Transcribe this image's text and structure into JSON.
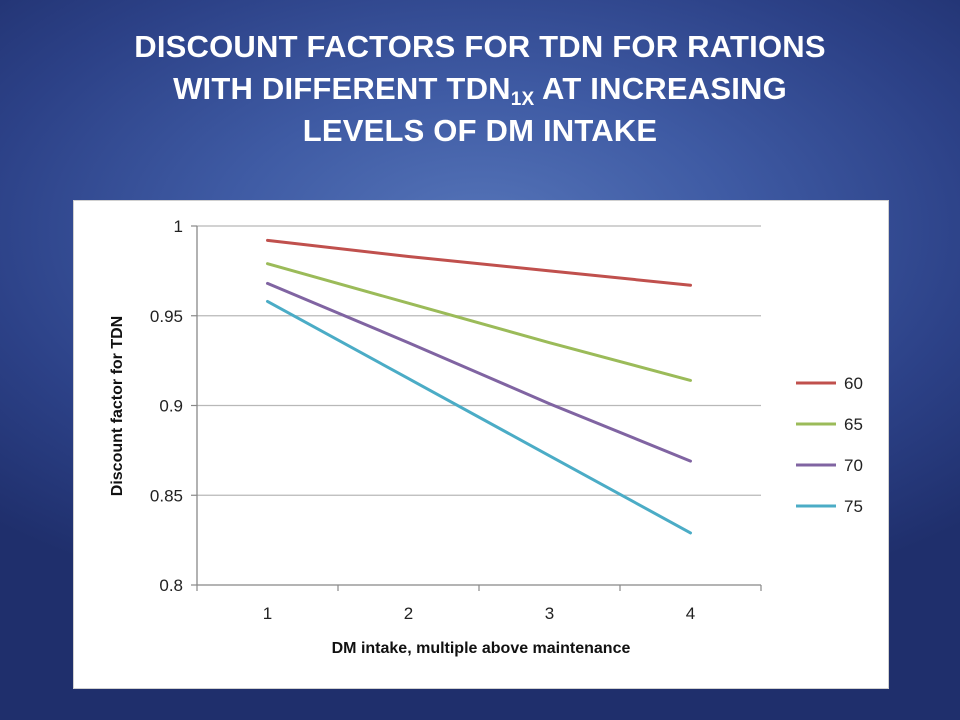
{
  "slide": {
    "title_line1": "DISCOUNT FACTORS FOR TDN FOR RATIONS",
    "title_line2_pre": "WITH DIFFERENT TDN",
    "title_line2_sub": "1X",
    "title_line2_post": " AT INCREASING",
    "title_line3": "LEVELS OF DM INTAKE"
  },
  "chart_data": {
    "type": "line",
    "categories": [
      1,
      2,
      3,
      4
    ],
    "series": [
      {
        "name": "60",
        "color": "#c0504d",
        "values": [
          0.992,
          0.983,
          0.975,
          0.967
        ]
      },
      {
        "name": "65",
        "color": "#9bbb59",
        "values": [
          0.979,
          0.957,
          0.935,
          0.914
        ]
      },
      {
        "name": "70",
        "color": "#8064a2",
        "values": [
          0.968,
          0.935,
          0.901,
          0.869
        ]
      },
      {
        "name": "75",
        "color": "#4bacc6",
        "values": [
          0.958,
          0.915,
          0.872,
          0.829
        ]
      }
    ],
    "xlabel": "DM intake, multiple above maintenance",
    "ylabel": "Discount factor for TDN",
    "ylim": [
      0.8,
      1
    ],
    "yticks": [
      0.8,
      0.85,
      0.9,
      0.95,
      1
    ],
    "ytick_labels": [
      "0.8",
      "0.85",
      "0.9",
      "0.95",
      "1"
    ],
    "xtick_labels": [
      "1",
      "2",
      "3",
      "4"
    ],
    "grid": "horizontal",
    "legend": "right"
  }
}
